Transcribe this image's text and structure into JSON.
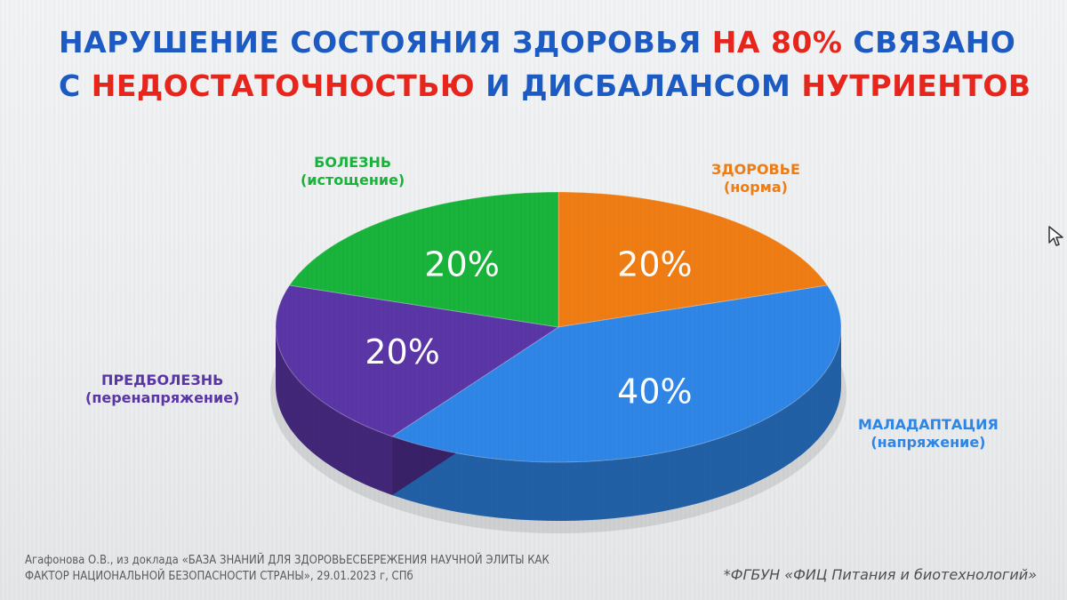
{
  "title": {
    "line1": [
      {
        "text": "НАРУШЕНИЕ СОСТОЯНИЯ  ЗДОРОВЬЯ ",
        "color": "blue"
      },
      {
        "text": "НА 80% ",
        "color": "red"
      },
      {
        "text": "СВЯЗАНО",
        "color": "blue"
      }
    ],
    "line2": [
      {
        "text": "С ",
        "color": "blue"
      },
      {
        "text": "НЕДОСТАТОЧНОСТЬЮ ",
        "color": "red"
      },
      {
        "text": "И  ДИСБАЛАНСОМ ",
        "color": "blue"
      },
      {
        "text": "НУТРИЕНТОВ",
        "color": "red"
      }
    ]
  },
  "chart_data": {
    "type": "pie",
    "style": "3d",
    "slices": [
      {
        "label": "ЗДОРОВЬЕ",
        "sublabel": "(норма)",
        "value": 20,
        "value_label": "20%",
        "color": "#f07d14"
      },
      {
        "label": "МАЛАДАПТАЦИЯ",
        "sublabel": "(напряжение)",
        "value": 40,
        "value_label": "40%",
        "color": "#2f86e6"
      },
      {
        "label": "ПРЕДБОЛЕЗНЬ",
        "sublabel": "(перенапряжение)",
        "value": 20,
        "value_label": "20%",
        "color": "#5b36a6"
      },
      {
        "label": "БОЛЕЗНЬ",
        "sublabel": "(истощение)",
        "value": 20,
        "value_label": "20%",
        "color": "#19b43b"
      }
    ]
  },
  "footnote": {
    "line1": "Агафонова О.В., из доклада «БАЗА ЗНАНИЙ ДЛЯ ЗДОРОВЬЕСБЕРЕЖЕНИЯ НАУЧНОЙ ЭЛИТЫ КАК",
    "line2": "ФАКТОР НАЦИОНАЛЬНОЙ БЕЗОПАСНОСТИ СТРАНЫ», 29.01.2023 г, СПб"
  },
  "organization": "*ФГБУН «ФИЦ Питания и биотехнологий»",
  "colors": {
    "blue": "#1d5bc4",
    "red": "#e8261d"
  }
}
